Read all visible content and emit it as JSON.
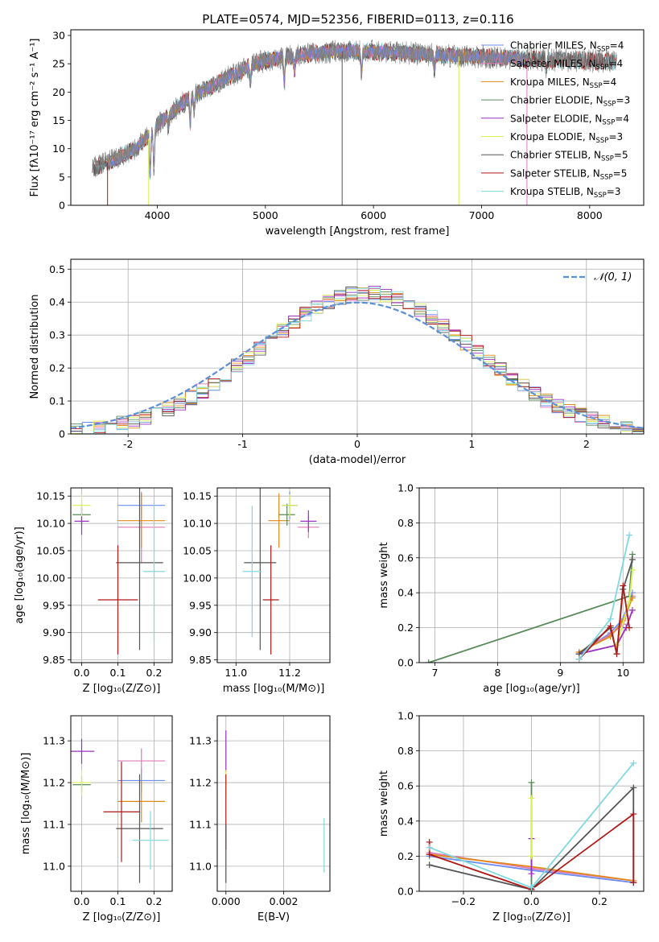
{
  "figure_title": "PLATE=0574, MJD=52356, FIBERID=0113, z=0.116",
  "colors": {
    "Chabrier MILES": "#6b8ef0",
    "Salpeter MILES": "#e07ab8",
    "Kroupa MILES": "#e08a1a",
    "Chabrier ELODIE": "#5a8a5a",
    "Salpeter ELODIE": "#9a30c0",
    "Kroupa ELODIE": "#d8f050",
    "Chabrier STELIB": "#555555",
    "Salpeter STELIB": "#b01818",
    "Kroupa STELIB": "#80d8e0",
    "normal": "#5b8fd6"
  },
  "legend_spectrum": [
    {
      "name": "Chabrier MILES",
      "n": "4"
    },
    {
      "name": "Salpeter MILES",
      "n": "4"
    },
    {
      "name": "Kroupa MILES",
      "n": "4"
    },
    {
      "name": "Chabrier ELODIE",
      "n": "3"
    },
    {
      "name": "Salpeter ELODIE",
      "n": "4"
    },
    {
      "name": "Kroupa ELODIE",
      "n": "3"
    },
    {
      "name": "Chabrier STELIB",
      "n": "5"
    },
    {
      "name": "Salpeter STELIB",
      "n": "5"
    },
    {
      "name": "Kroupa STELIB",
      "n": "3"
    }
  ],
  "chart_data": [
    {
      "id": "spectrum",
      "type": "line",
      "xlabel": "wavelength [Angstrom, rest frame]",
      "ylabel": "Flux [fλ10⁻¹⁷ erg cm⁻² s⁻¹ A⁻¹]",
      "xlim": [
        3200,
        8500
      ],
      "ylim": [
        0,
        31
      ],
      "xticks": [
        4000,
        5000,
        6000,
        7000,
        8000
      ],
      "yticks": [
        0,
        5,
        10,
        15,
        20,
        25,
        30
      ],
      "continuum": {
        "x": [
          3400,
          3600,
          3800,
          3950,
          4100,
          4300,
          4500,
          4700,
          4900,
          5100,
          5300,
          5500,
          5800,
          6100,
          6400,
          6800,
          7200,
          7600,
          8000,
          8250
        ],
        "y": [
          6.5,
          8,
          10,
          13,
          16,
          19,
          21,
          23,
          25,
          26,
          26.5,
          27,
          27.3,
          27.1,
          26.8,
          26.3,
          26,
          25.7,
          25.5,
          25.4
        ]
      }
    },
    {
      "id": "residuals",
      "type": "histogram",
      "xlabel": "(data-model)/error",
      "ylabel": "Normed distribution",
      "xlim": [
        -2.5,
        2.5
      ],
      "ylim": [
        0,
        0.53
      ],
      "xticks": [
        -2,
        -1,
        0,
        1,
        2
      ],
      "yticks": [
        0.0,
        0.1,
        0.2,
        0.3,
        0.4,
        0.5
      ],
      "legend": "𝒩(0, 1)",
      "bin_width": 0.1
    },
    {
      "id": "age_vs_Z",
      "type": "errorbar",
      "xlabel": "Z [log₁₀(Z/Z⊙)]",
      "ylabel": "age  [log₁₀(age/yr)]",
      "xlim": [
        -0.03,
        0.25
      ],
      "ylim": [
        9.845,
        10.165
      ],
      "xticks": [
        "0.0",
        "0.1",
        "0.2"
      ],
      "yticks": [
        "9.85",
        "9.90",
        "9.95",
        "10.00",
        "10.05",
        "10.10",
        "10.15"
      ],
      "points": [
        {
          "series": "Chabrier MILES",
          "x": 0.165,
          "xerr": 0.065,
          "y": 10.133,
          "yerr": 0.022
        },
        {
          "series": "Salpeter MILES",
          "x": 0.165,
          "xerr": 0.065,
          "y": 10.093,
          "yerr": 0.065
        },
        {
          "series": "Kroupa MILES",
          "x": 0.165,
          "xerr": 0.065,
          "y": 10.105,
          "yerr": 0.05
        },
        {
          "series": "Chabrier ELODIE",
          "x": 0.0,
          "xerr": 0.025,
          "y": 10.116,
          "yerr": 0.02
        },
        {
          "series": "Salpeter ELODIE",
          "x": 0.0,
          "xerr": 0.02,
          "y": 10.104,
          "yerr": 0.025
        },
        {
          "series": "Kroupa ELODIE",
          "x": 0.0,
          "xerr": 0.025,
          "y": 10.133,
          "yerr": 0.02
        },
        {
          "series": "Chabrier STELIB",
          "x": 0.16,
          "xerr": 0.065,
          "y": 10.028,
          "yerr": 0.16
        },
        {
          "series": "Salpeter STELIB",
          "x": 0.1,
          "xerr": 0.055,
          "y": 9.96,
          "yerr": 0.1
        },
        {
          "series": "Kroupa STELIB",
          "x": 0.2,
          "xerr": 0.03,
          "y": 10.012,
          "yerr": 0.13
        }
      ]
    },
    {
      "id": "age_vs_mass",
      "type": "errorbar",
      "xlabel": "mass [log₁₀(M/M⊙)]",
      "xlim": [
        10.93,
        11.35
      ],
      "ylim": [
        9.845,
        10.165
      ],
      "xticks": [
        "11.0",
        "11.2"
      ],
      "yticks": [
        "9.85",
        "9.90",
        "9.95",
        "10.00",
        "10.05",
        "10.10",
        "10.15"
      ],
      "points": [
        {
          "series": "Chabrier MILES",
          "x": 11.2,
          "xerr": 0.03,
          "y": 10.133,
          "yerr": 0.025
        },
        {
          "series": "Salpeter MILES",
          "x": 11.27,
          "xerr": 0.04,
          "y": 10.093,
          "yerr": 0.02
        },
        {
          "series": "Kroupa MILES",
          "x": 11.16,
          "xerr": 0.04,
          "y": 10.105,
          "yerr": 0.05
        },
        {
          "series": "Chabrier ELODIE",
          "x": 11.19,
          "xerr": 0.03,
          "y": 10.116,
          "yerr": 0.02
        },
        {
          "series": "Salpeter ELODIE",
          "x": 11.27,
          "xerr": 0.03,
          "y": 10.104,
          "yerr": 0.02
        },
        {
          "series": "Kroupa ELODIE",
          "x": 11.2,
          "xerr": 0.03,
          "y": 10.133,
          "yerr": 0.02
        },
        {
          "series": "Chabrier STELIB",
          "x": 11.09,
          "xerr": 0.06,
          "y": 10.028,
          "yerr": 0.16
        },
        {
          "series": "Salpeter STELIB",
          "x": 11.13,
          "xerr": 0.03,
          "y": 9.96,
          "yerr": 0.1
        },
        {
          "series": "Kroupa STELIB",
          "x": 11.06,
          "xerr": 0.035,
          "y": 10.012,
          "yerr": 0.12
        }
      ]
    },
    {
      "id": "weight_vs_age",
      "type": "line",
      "xlabel": "age  [log₁₀(age/yr)]",
      "ylabel": "mass weight",
      "xlim": [
        6.75,
        10.33
      ],
      "ylim": [
        0,
        1
      ],
      "xticks": [
        7,
        8,
        9,
        10
      ],
      "yticks": [
        "0.0",
        "0.2",
        "0.4",
        "0.6",
        "0.8",
        "1.0"
      ],
      "series": [
        {
          "name": "Chabrier MILES",
          "x": [
            9.3,
            9.8,
            10.0,
            10.15
          ],
          "y": [
            0.05,
            0.17,
            0.25,
            0.4
          ]
        },
        {
          "name": "Salpeter MILES",
          "x": [
            9.3,
            9.8,
            10.0,
            10.15
          ],
          "y": [
            0.06,
            0.16,
            0.22,
            0.38
          ]
        },
        {
          "name": "Kroupa MILES",
          "x": [
            9.3,
            9.8,
            10.0,
            10.15
          ],
          "y": [
            0.06,
            0.15,
            0.24,
            0.37
          ]
        },
        {
          "name": "Chabrier ELODIE",
          "x": [
            6.9,
            10.1,
            10.15
          ],
          "y": [
            0.0,
            0.38,
            0.62
          ]
        },
        {
          "name": "Salpeter ELODIE",
          "x": [
            9.3,
            9.9,
            10.05,
            10.15
          ],
          "y": [
            0.05,
            0.1,
            0.2,
            0.3
          ]
        },
        {
          "name": "Kroupa ELODIE",
          "x": [
            9.9,
            10.1,
            10.15
          ],
          "y": [
            0.1,
            0.35,
            0.53
          ]
        },
        {
          "name": "Chabrier STELIB",
          "x": [
            9.3,
            9.8,
            9.9,
            10.0,
            10.15
          ],
          "y": [
            0.05,
            0.2,
            0.05,
            0.42,
            0.59
          ]
        },
        {
          "name": "Salpeter STELIB",
          "x": [
            9.3,
            9.8,
            9.9,
            10.0,
            10.1
          ],
          "y": [
            0.02,
            0.21,
            0.05,
            0.44,
            0.2
          ]
        },
        {
          "name": "Kroupa STELIB",
          "x": [
            9.3,
            9.8,
            10.1
          ],
          "y": [
            0.02,
            0.25,
            0.73
          ]
        }
      ]
    },
    {
      "id": "mass_vs_Z",
      "type": "errorbar",
      "xlabel": "Z [log₁₀(Z/Z⊙)]",
      "ylabel": "mass [log₁₀(M/M⊙)]",
      "xlim": [
        -0.03,
        0.25
      ],
      "ylim": [
        10.94,
        11.36
      ],
      "xticks": [
        "0.0",
        "0.1",
        "0.2"
      ],
      "yticks": [
        "11.0",
        "11.1",
        "11.2",
        "11.3"
      ],
      "points": [
        {
          "series": "Chabrier MILES",
          "x": 0.165,
          "xerr": 0.065,
          "y": 11.205,
          "yerr": 0.03
        },
        {
          "series": "Salpeter MILES",
          "x": 0.165,
          "xerr": 0.065,
          "y": 11.252,
          "yerr": 0.03
        },
        {
          "series": "Kroupa MILES",
          "x": 0.165,
          "xerr": 0.065,
          "y": 11.155,
          "yerr": 0.05
        },
        {
          "series": "Chabrier ELODIE",
          "x": 0.0,
          "xerr": 0.025,
          "y": 11.195,
          "yerr": 0.02
        },
        {
          "series": "Salpeter ELODIE",
          "x": 0.0,
          "xerr": 0.035,
          "y": 11.275,
          "yerr": 0.03
        },
        {
          "series": "Kroupa ELODIE",
          "x": 0.0,
          "xerr": 0.025,
          "y": 11.2,
          "yerr": 0.03
        },
        {
          "series": "Chabrier STELIB",
          "x": 0.16,
          "xerr": 0.065,
          "y": 11.09,
          "yerr": 0.13
        },
        {
          "series": "Salpeter STELIB",
          "x": 0.11,
          "xerr": 0.05,
          "y": 11.13,
          "yerr": 0.12
        },
        {
          "series": "Kroupa STELIB",
          "x": 0.19,
          "xerr": 0.05,
          "y": 11.062,
          "yerr": 0.07
        }
      ]
    },
    {
      "id": "mass_vs_ebv",
      "type": "errorbar",
      "xlabel": "E(B-V)",
      "xlim": [
        -0.0003,
        0.0036
      ],
      "ylim": [
        10.94,
        11.36
      ],
      "xticks": [
        "0.000",
        "0.002"
      ],
      "yticks": [
        "11.0",
        "11.1",
        "11.2",
        "11.3"
      ],
      "points": [
        {
          "series": "Salpeter ELODIE",
          "x": 0.0,
          "xerr": 0.0,
          "y": 11.275,
          "yerr": 0.05
        },
        {
          "series": "Kroupa ELODIE",
          "x": 0.0,
          "xerr": 0.0,
          "y": 11.2,
          "yerr": 0.03
        },
        {
          "series": "Salpeter STELIB",
          "x": 0.0,
          "xerr": 0.0,
          "y": 11.13,
          "yerr": 0.09
        },
        {
          "series": "Chabrier STELIB",
          "x": 0.0,
          "xerr": 0.0,
          "y": 11.03,
          "yerr": 0.07
        },
        {
          "series": "Kroupa STELIB",
          "x": 0.0034,
          "xerr": 0.0,
          "y": 11.05,
          "yerr": 0.065
        }
      ]
    },
    {
      "id": "weight_vs_Z",
      "type": "line",
      "xlabel": "Z [log₁₀(Z/Z⊙)]",
      "ylabel": "mass weight",
      "xlim": [
        -0.33,
        0.33
      ],
      "ylim": [
        0,
        1
      ],
      "xticks": [
        "−0.2",
        "0.0",
        "0.2"
      ],
      "yticks": [
        "0.0",
        "0.2",
        "0.4",
        "0.6",
        "0.8",
        "1.0"
      ],
      "series": [
        {
          "name": "Chabrier MILES",
          "x": [
            -0.3,
            0.0,
            0.3
          ],
          "y": [
            0.2,
            0.12,
            0.05
          ]
        },
        {
          "name": "Salpeter MILES",
          "x": [
            -0.3,
            0.0,
            0.3
          ],
          "y": [
            0.22,
            0.13,
            0.06
          ]
        },
        {
          "name": "Kroupa MILES",
          "x": [
            -0.3,
            0.0,
            0.3
          ],
          "y": [
            0.21,
            0.14,
            0.06
          ]
        },
        {
          "name": "Chabrier ELODIE",
          "x": [
            0.0,
            0.0
          ],
          "y": [
            0.0,
            0.62
          ]
        },
        {
          "name": "Salpeter ELODIE",
          "x": [
            0.0,
            0.0
          ],
          "y": [
            0.1,
            0.3
          ]
        },
        {
          "name": "Kroupa ELODIE",
          "x": [
            0.0,
            0.0
          ],
          "y": [
            0.2,
            0.53
          ]
        },
        {
          "name": "Chabrier STELIB",
          "x": [
            -0.3,
            0.0,
            0.3,
            0.3
          ],
          "y": [
            0.15,
            0.01,
            0.59,
            0.05
          ]
        },
        {
          "name": "Salpeter STELIB",
          "x": [
            -0.3,
            -0.3,
            0.0,
            0.3,
            0.3
          ],
          "y": [
            0.28,
            0.21,
            0.01,
            0.44,
            0.05
          ]
        },
        {
          "name": "Kroupa STELIB",
          "x": [
            -0.3,
            0.0,
            0.3
          ],
          "y": [
            0.25,
            0.02,
            0.73
          ]
        }
      ]
    }
  ]
}
